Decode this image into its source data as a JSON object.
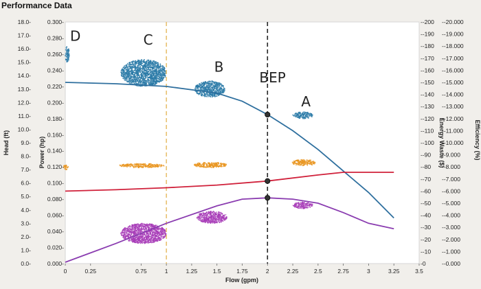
{
  "panel": {
    "title": "Performance Data"
  },
  "chart_data": {
    "type": "line",
    "title": "",
    "xlabel": "Flow (gpm)",
    "xlim": [
      0,
      3.5
    ],
    "x_ticks": [
      "0",
      "0.25",
      "0.75",
      "1",
      "1.25",
      "1.5",
      "1.75",
      "2",
      "2.25",
      "2.5",
      "2.75",
      "3",
      "3.25",
      "3.5"
    ],
    "x_tick_values": [
      0,
      0.25,
      0.75,
      1,
      1.25,
      1.5,
      1.75,
      2,
      2.25,
      2.5,
      2.75,
      3,
      3.25,
      3.5
    ],
    "left_axes": [
      {
        "label": "Head (ft)",
        "range": [
          0,
          18
        ],
        "ticks": [
          "0.0",
          "1.0",
          "2.0",
          "3.0",
          "4.0",
          "5.0",
          "6.0",
          "7.0",
          "8.0",
          "9.0",
          "10.0",
          "11.0",
          "12.0",
          "13.0",
          "14.0",
          "15.0",
          "16.0",
          "17.0",
          "18.0"
        ]
      },
      {
        "label": "Power (hp)",
        "range": [
          0,
          0.3
        ],
        "ticks": [
          "0.000",
          "0.020",
          "0.040",
          "0.060",
          "0.080",
          "0.100",
          "0.120",
          "0.140",
          "0.160",
          "0.180",
          "0.200",
          "0.220",
          "0.240",
          "0.260",
          "0.280",
          "0.300"
        ]
      }
    ],
    "right_axes": [
      {
        "label": "Energy Waste ($)",
        "range": [
          0,
          -200
        ],
        "ticks": [
          "0",
          "-10",
          "-20",
          "-30",
          "-40",
          "-50",
          "-60",
          "-70",
          "-80",
          "-90",
          "-100",
          "-110",
          "-120",
          "-130",
          "-140",
          "-150",
          "-160",
          "-170",
          "-180",
          "-190",
          "-200"
        ]
      },
      {
        "label": "Efficiency (%)",
        "range": [
          0,
          -20
        ],
        "ticks": [
          "-0.000",
          "-1.000",
          "-2.000",
          "-3.000",
          "-4.000",
          "-5.000",
          "-6.000",
          "-7.000",
          "-8.000",
          "-9.000",
          "-10.000",
          "-11.000",
          "-12.000",
          "-13.000",
          "-14.000",
          "-15.000",
          "-16.000",
          "-17.000",
          "-18.000",
          "-19.000",
          "-20.000"
        ]
      }
    ],
    "reference_lines": [
      {
        "x": 1.0,
        "style": "dashed",
        "color": "#e8c070"
      },
      {
        "x": 2.0,
        "style": "dashed",
        "color": "#222222"
      }
    ],
    "series": [
      {
        "axis": "head",
        "color": "#2e6f9e",
        "x": [
          0,
          0.5,
          1.0,
          1.5,
          1.75,
          2.0,
          2.25,
          2.5,
          2.75,
          3.0,
          3.25
        ],
        "y": [
          13.5,
          13.4,
          13.2,
          12.7,
          12.1,
          11.1,
          9.9,
          8.5,
          6.9,
          5.3,
          3.4
        ]
      },
      {
        "axis": "head",
        "color": "#d0203a",
        "x": [
          0,
          0.5,
          1.0,
          1.5,
          2.0,
          2.5,
          2.75,
          3.0,
          3.25
        ],
        "y": [
          5.4,
          5.5,
          5.65,
          5.85,
          6.15,
          6.6,
          6.8,
          6.8,
          6.8
        ]
      },
      {
        "axis": "head",
        "color": "#8a3cb0",
        "x": [
          0,
          0.5,
          1.0,
          1.5,
          1.75,
          2.0,
          2.25,
          2.5,
          2.75,
          3.0,
          3.25
        ],
        "y": [
          0.1,
          1.5,
          3.0,
          4.3,
          4.8,
          4.9,
          4.8,
          4.5,
          3.8,
          3.0,
          2.6
        ]
      }
    ],
    "markers": [
      {
        "x": 2.0,
        "y": 11.1
      },
      {
        "x": 2.0,
        "y": 6.15
      },
      {
        "x": 2.0,
        "y": 4.9
      }
    ],
    "point_clusters": [
      {
        "name": "C",
        "color": "#2a7aa8",
        "x": [
          0.55,
          1.0
        ],
        "y": [
          13.2,
          15.2
        ]
      },
      {
        "name": "B",
        "color": "#2a7aa8",
        "x": [
          1.28,
          1.58
        ],
        "y": [
          12.4,
          13.6
        ]
      },
      {
        "name": "A",
        "color": "#2a7aa8",
        "x": [
          2.25,
          2.45
        ],
        "y": [
          10.8,
          11.3
        ]
      },
      {
        "name": "D",
        "color": "#2a7aa8",
        "x": [
          0,
          0.04
        ],
        "y": [
          15.0,
          16.2
        ]
      },
      {
        "color": "#e8931c",
        "x": [
          0.52,
          0.98
        ],
        "y": [
          7.15,
          7.45
        ]
      },
      {
        "color": "#e8931c",
        "x": [
          1.27,
          1.6
        ],
        "y": [
          7.15,
          7.55
        ]
      },
      {
        "color": "#e8931c",
        "x": [
          2.24,
          2.48
        ],
        "y": [
          7.3,
          7.75
        ]
      },
      {
        "color": "#e8931c",
        "x": [
          -0.02,
          0.03
        ],
        "y": [
          7.0,
          7.35
        ]
      },
      {
        "color": "#a83cb8",
        "x": [
          0.55,
          1.0
        ],
        "y": [
          1.5,
          3.0
        ]
      },
      {
        "color": "#a83cb8",
        "x": [
          1.3,
          1.6
        ],
        "y": [
          3.0,
          3.9
        ]
      },
      {
        "color": "#a83cb8",
        "x": [
          2.25,
          2.45
        ],
        "y": [
          4.1,
          4.6
        ]
      }
    ],
    "annotations": [
      {
        "text": "D",
        "x": 0.1,
        "y": 16.6
      },
      {
        "text": "C",
        "x": 0.82,
        "y": 16.3
      },
      {
        "text": "B",
        "x": 1.52,
        "y": 14.3
      },
      {
        "text": "BEP",
        "x": 2.05,
        "y": 13.5
      },
      {
        "text": "A",
        "x": 2.38,
        "y": 11.7
      }
    ]
  }
}
